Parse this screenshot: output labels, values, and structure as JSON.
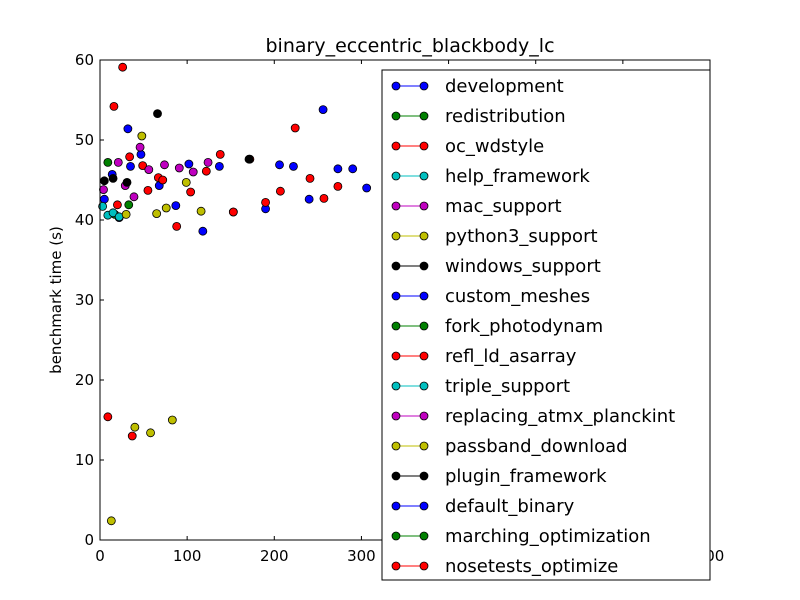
{
  "chart_data": {
    "type": "scatter",
    "title": "binary_eccentric_blackbody_lc",
    "ylabel": "benchmark time (s)",
    "xlabel": "",
    "xlim": [
      0,
      700
    ],
    "ylim": [
      0,
      60
    ],
    "xticks": [
      0,
      100,
      200,
      300,
      400,
      500,
      600,
      700
    ],
    "yticks": [
      0,
      10,
      20,
      30,
      40,
      50,
      60
    ],
    "xtick_labels": [
      "0",
      "100",
      "200",
      "300",
      "",
      "",
      "",
      "700"
    ],
    "ytick_labels": [
      "0",
      "10",
      "20",
      "30",
      "40",
      "50",
      "60"
    ],
    "grid": false,
    "legend_position": "top-right",
    "series": [
      {
        "name": "development",
        "color": "#0000ff",
        "points": [
          [
            5,
            42.6
          ],
          [
            14,
            45.7
          ],
          [
            22,
            40.3
          ],
          [
            32,
            51.4
          ],
          [
            35,
            46.7
          ],
          [
            47,
            48.2
          ],
          [
            68,
            44.3
          ],
          [
            87,
            41.8
          ],
          [
            102,
            47.0
          ],
          [
            118,
            38.6
          ],
          [
            137,
            46.7
          ],
          [
            153,
            41.0
          ],
          [
            190,
            41.4
          ],
          [
            206,
            46.9
          ],
          [
            222,
            46.7
          ],
          [
            240,
            42.6
          ],
          [
            256,
            53.8
          ],
          [
            273,
            46.4
          ],
          [
            290,
            46.4
          ],
          [
            306,
            44.0
          ]
        ]
      },
      {
        "name": "redistribution",
        "color": "#008000",
        "points": [
          [
            9,
            47.2
          ],
          [
            17,
            40.7
          ],
          [
            33,
            41.9
          ]
        ]
      },
      {
        "name": "oc_wdstyle",
        "color": "#ff0000",
        "points": [
          [
            9,
            15.4
          ],
          [
            16,
            54.2
          ],
          [
            20,
            41.9
          ],
          [
            26,
            59.1
          ],
          [
            34,
            47.9
          ],
          [
            37,
            13.0
          ],
          [
            49,
            46.8
          ],
          [
            55,
            43.7
          ],
          [
            67,
            45.3
          ],
          [
            72,
            45.0
          ],
          [
            88,
            39.2
          ],
          [
            104,
            43.5
          ],
          [
            122,
            46.1
          ],
          [
            138,
            48.2
          ],
          [
            153,
            41.0
          ],
          [
            172,
            47.6
          ],
          [
            190,
            42.2
          ],
          [
            207,
            43.6
          ],
          [
            224,
            51.5
          ],
          [
            241,
            45.2
          ],
          [
            257,
            42.7
          ],
          [
            273,
            44.2
          ]
        ]
      },
      {
        "name": "help_framework",
        "color": "#00bfbf",
        "points": [
          [
            3,
            41.7
          ],
          [
            9,
            40.6
          ],
          [
            15,
            40.9
          ],
          [
            22,
            40.4
          ]
        ]
      },
      {
        "name": "mac_support",
        "color": "#bf00bf",
        "points": [
          [
            4,
            43.8
          ],
          [
            21,
            47.2
          ],
          [
            29,
            44.3
          ],
          [
            39,
            42.9
          ],
          [
            46,
            49.1
          ],
          [
            56,
            46.3
          ],
          [
            74,
            46.9
          ],
          [
            91,
            46.5
          ],
          [
            107,
            46.0
          ],
          [
            124,
            47.2
          ]
        ]
      },
      {
        "name": "python3_support",
        "color": "#bfbf00",
        "points": [
          [
            13,
            2.4
          ],
          [
            30,
            40.7
          ],
          [
            40,
            14.1
          ],
          [
            48,
            50.5
          ],
          [
            58,
            13.4
          ],
          [
            65,
            40.8
          ],
          [
            76,
            41.5
          ],
          [
            83,
            15.0
          ],
          [
            99,
            44.7
          ],
          [
            116,
            41.1
          ]
        ]
      },
      {
        "name": "windows_support",
        "color": "#000000",
        "points": [
          [
            5,
            44.9
          ],
          [
            15,
            45.2
          ],
          [
            31,
            44.7
          ],
          [
            66,
            53.3
          ],
          [
            171,
            47.6
          ]
        ]
      },
      {
        "name": "custom_meshes",
        "color": "#0000ff",
        "points": []
      },
      {
        "name": "fork_photodynam",
        "color": "#008000",
        "points": []
      },
      {
        "name": "refl_ld_asarray",
        "color": "#ff0000",
        "points": []
      },
      {
        "name": "triple_support",
        "color": "#00bfbf",
        "points": []
      },
      {
        "name": "replacing_atmx_planckint",
        "color": "#bf00bf",
        "points": []
      },
      {
        "name": "passband_download",
        "color": "#bfbf00",
        "points": []
      },
      {
        "name": "plugin_framework",
        "color": "#000000",
        "points": []
      },
      {
        "name": "default_binary",
        "color": "#0000ff",
        "points": []
      },
      {
        "name": "marching_optimization",
        "color": "#008000",
        "points": []
      },
      {
        "name": "nosetests_optimize",
        "color": "#ff0000",
        "points": []
      }
    ]
  }
}
